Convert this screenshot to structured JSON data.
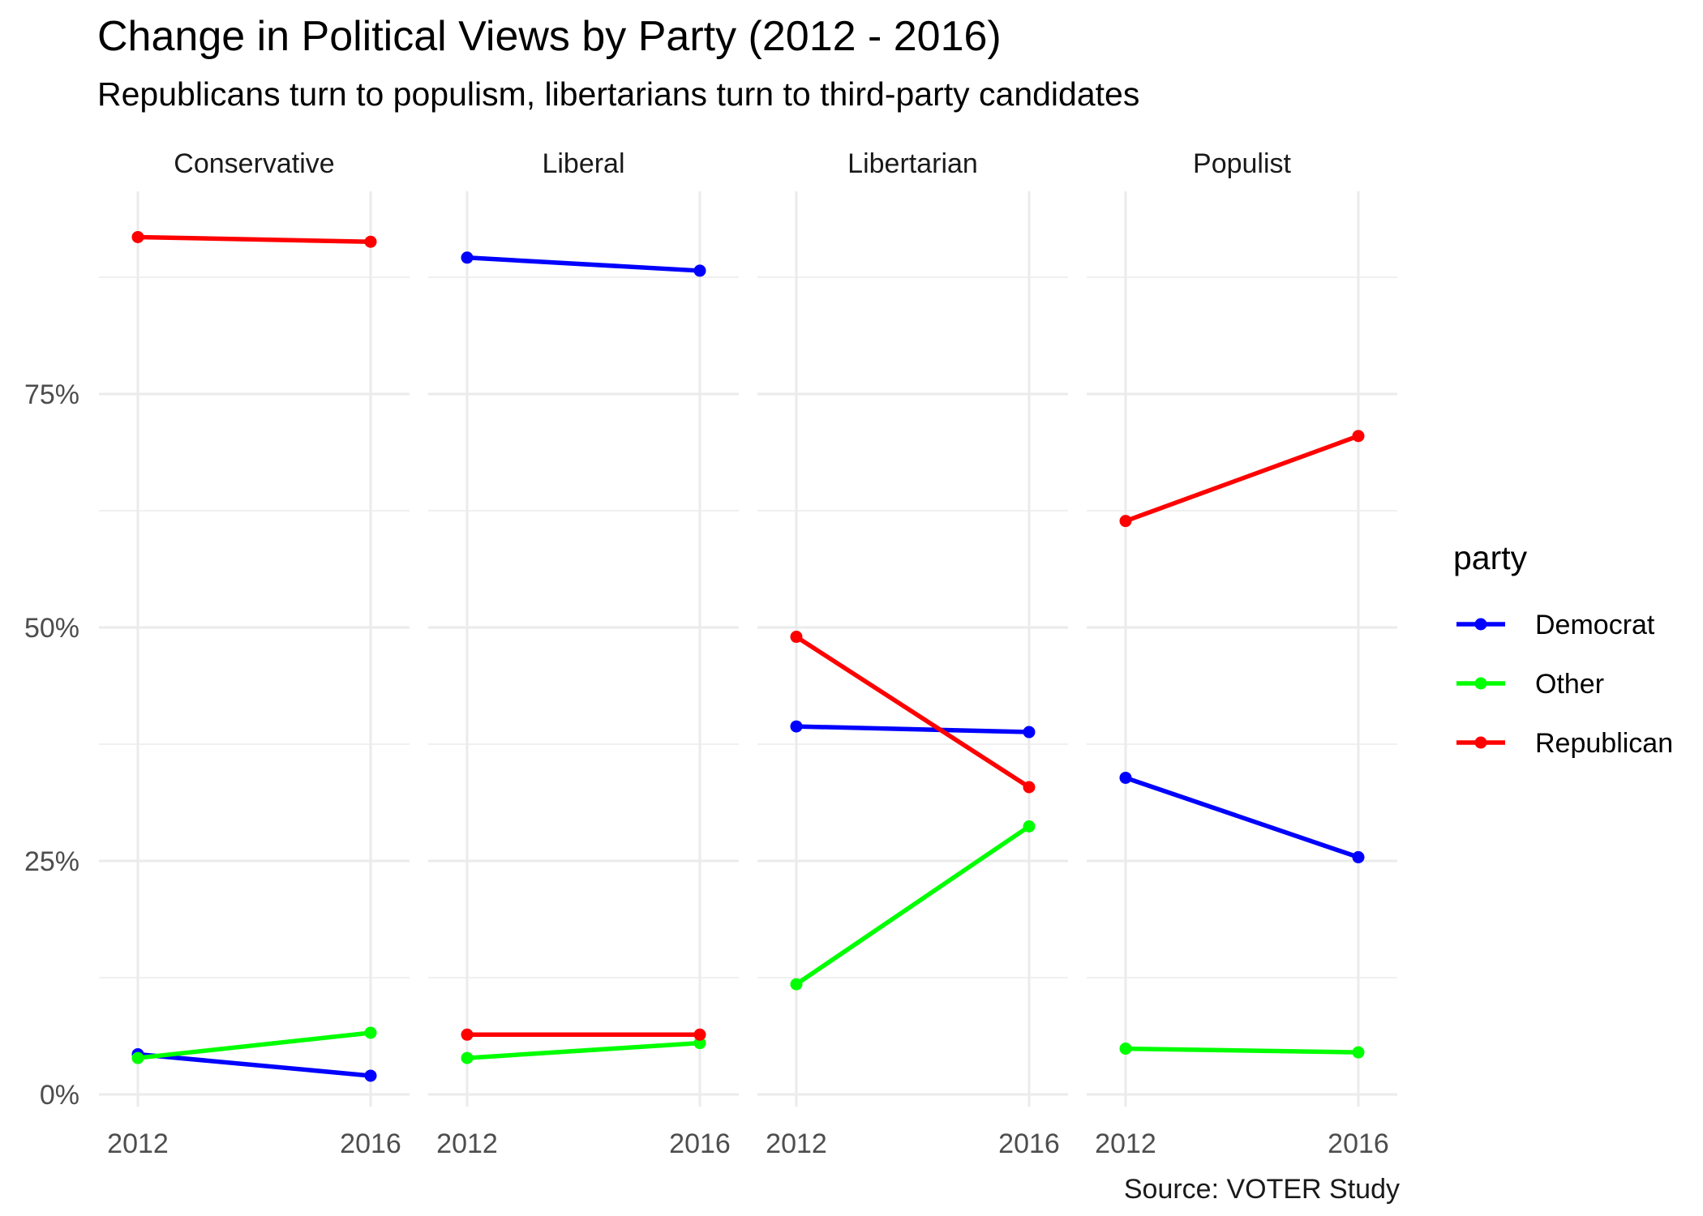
{
  "chart_data": {
    "type": "line",
    "title": "Change in Political Views by Party (2012 - 2016)",
    "subtitle": "Republicans turn to populism, libertarians turn to third-party candidates",
    "caption": "Source: VOTER Study",
    "x": [
      "2012",
      "2016"
    ],
    "ylim": [
      0,
      95
    ],
    "y_ticks": [
      0,
      25,
      50,
      75
    ],
    "y_tick_labels": [
      "0%",
      "25%",
      "50%",
      "75%"
    ],
    "grid": true,
    "legend": {
      "title": "party",
      "position": "right",
      "entries": [
        {
          "name": "Democrat",
          "color": "#0000ff"
        },
        {
          "name": "Other",
          "color": "#00ff00"
        },
        {
          "name": "Republican",
          "color": "#ff0000"
        }
      ]
    },
    "facets": [
      {
        "name": "Conservative",
        "series": [
          {
            "name": "Democrat",
            "values": [
              4.3,
              2.0
            ]
          },
          {
            "name": "Other",
            "values": [
              3.9,
              6.6
            ]
          },
          {
            "name": "Republican",
            "values": [
              91.8,
              91.3
            ]
          }
        ]
      },
      {
        "name": "Liberal",
        "series": [
          {
            "name": "Democrat",
            "values": [
              89.6,
              88.2
            ]
          },
          {
            "name": "Other",
            "values": [
              3.9,
              5.5
            ]
          },
          {
            "name": "Republican",
            "values": [
              6.4,
              6.4
            ]
          }
        ]
      },
      {
        "name": "Libertarian",
        "series": [
          {
            "name": "Democrat",
            "values": [
              39.4,
              38.8
            ]
          },
          {
            "name": "Other",
            "values": [
              11.8,
              28.7
            ]
          },
          {
            "name": "Republican",
            "values": [
              49.0,
              32.9
            ]
          }
        ]
      },
      {
        "name": "Populist",
        "series": [
          {
            "name": "Democrat",
            "values": [
              33.9,
              25.4
            ]
          },
          {
            "name": "Other",
            "values": [
              4.9,
              4.5
            ]
          },
          {
            "name": "Republican",
            "values": [
              61.4,
              70.5
            ]
          }
        ]
      }
    ]
  }
}
